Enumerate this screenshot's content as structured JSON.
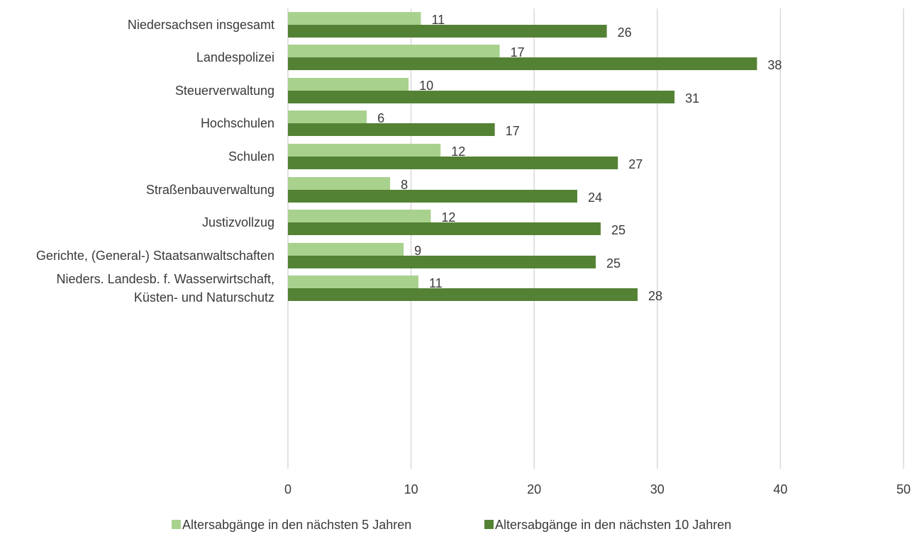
{
  "chart_data": {
    "type": "bar",
    "orientation": "horizontal",
    "categories": [
      [
        "Niedersachsen insgesamt"
      ],
      [
        "Landespolizei"
      ],
      [
        "Steuerverwaltung"
      ],
      [
        "Hochschulen"
      ],
      [
        "Schulen"
      ],
      [
        "Straßenbauverwaltung"
      ],
      [
        "Justizvollzug"
      ],
      [
        "Gerichte, (General-) Staatsanwaltschaften"
      ],
      [
        "Nieders. Landesb. f. Wasserwirtschaft,",
        "Küsten- und Naturschutz"
      ]
    ],
    "groups": [
      [
        0
      ],
      [
        1,
        2
      ],
      [
        3,
        4,
        5
      ],
      [
        6,
        7
      ],
      [
        8
      ]
    ],
    "series": [
      {
        "name": "Altersabgänge in den nächsten 5 Jahren",
        "color": "#a9d18e",
        "values": [
          10.8,
          17.2,
          9.8,
          6.4,
          12.4,
          8.3,
          11.6,
          9.4,
          10.6
        ],
        "labels": [
          "11",
          "17",
          "10",
          "6",
          "12",
          "8",
          "12",
          "9",
          "11"
        ]
      },
      {
        "name": "Altersabgänge in den nächsten 10 Jahren",
        "color": "#548235",
        "values": [
          25.9,
          38.1,
          31.4,
          16.8,
          26.8,
          23.5,
          25.4,
          25.0,
          28.4
        ],
        "labels": [
          "26",
          "38",
          "31",
          "17",
          "27",
          "24",
          "25",
          "25",
          "28"
        ]
      }
    ],
    "xlim": [
      0,
      50
    ],
    "xticks": [
      "0",
      "10",
      "20",
      "30",
      "40",
      "50"
    ],
    "xtick_values": [
      0,
      10,
      20,
      30,
      40,
      50
    ],
    "grid": true,
    "legend_position": "bottom"
  }
}
